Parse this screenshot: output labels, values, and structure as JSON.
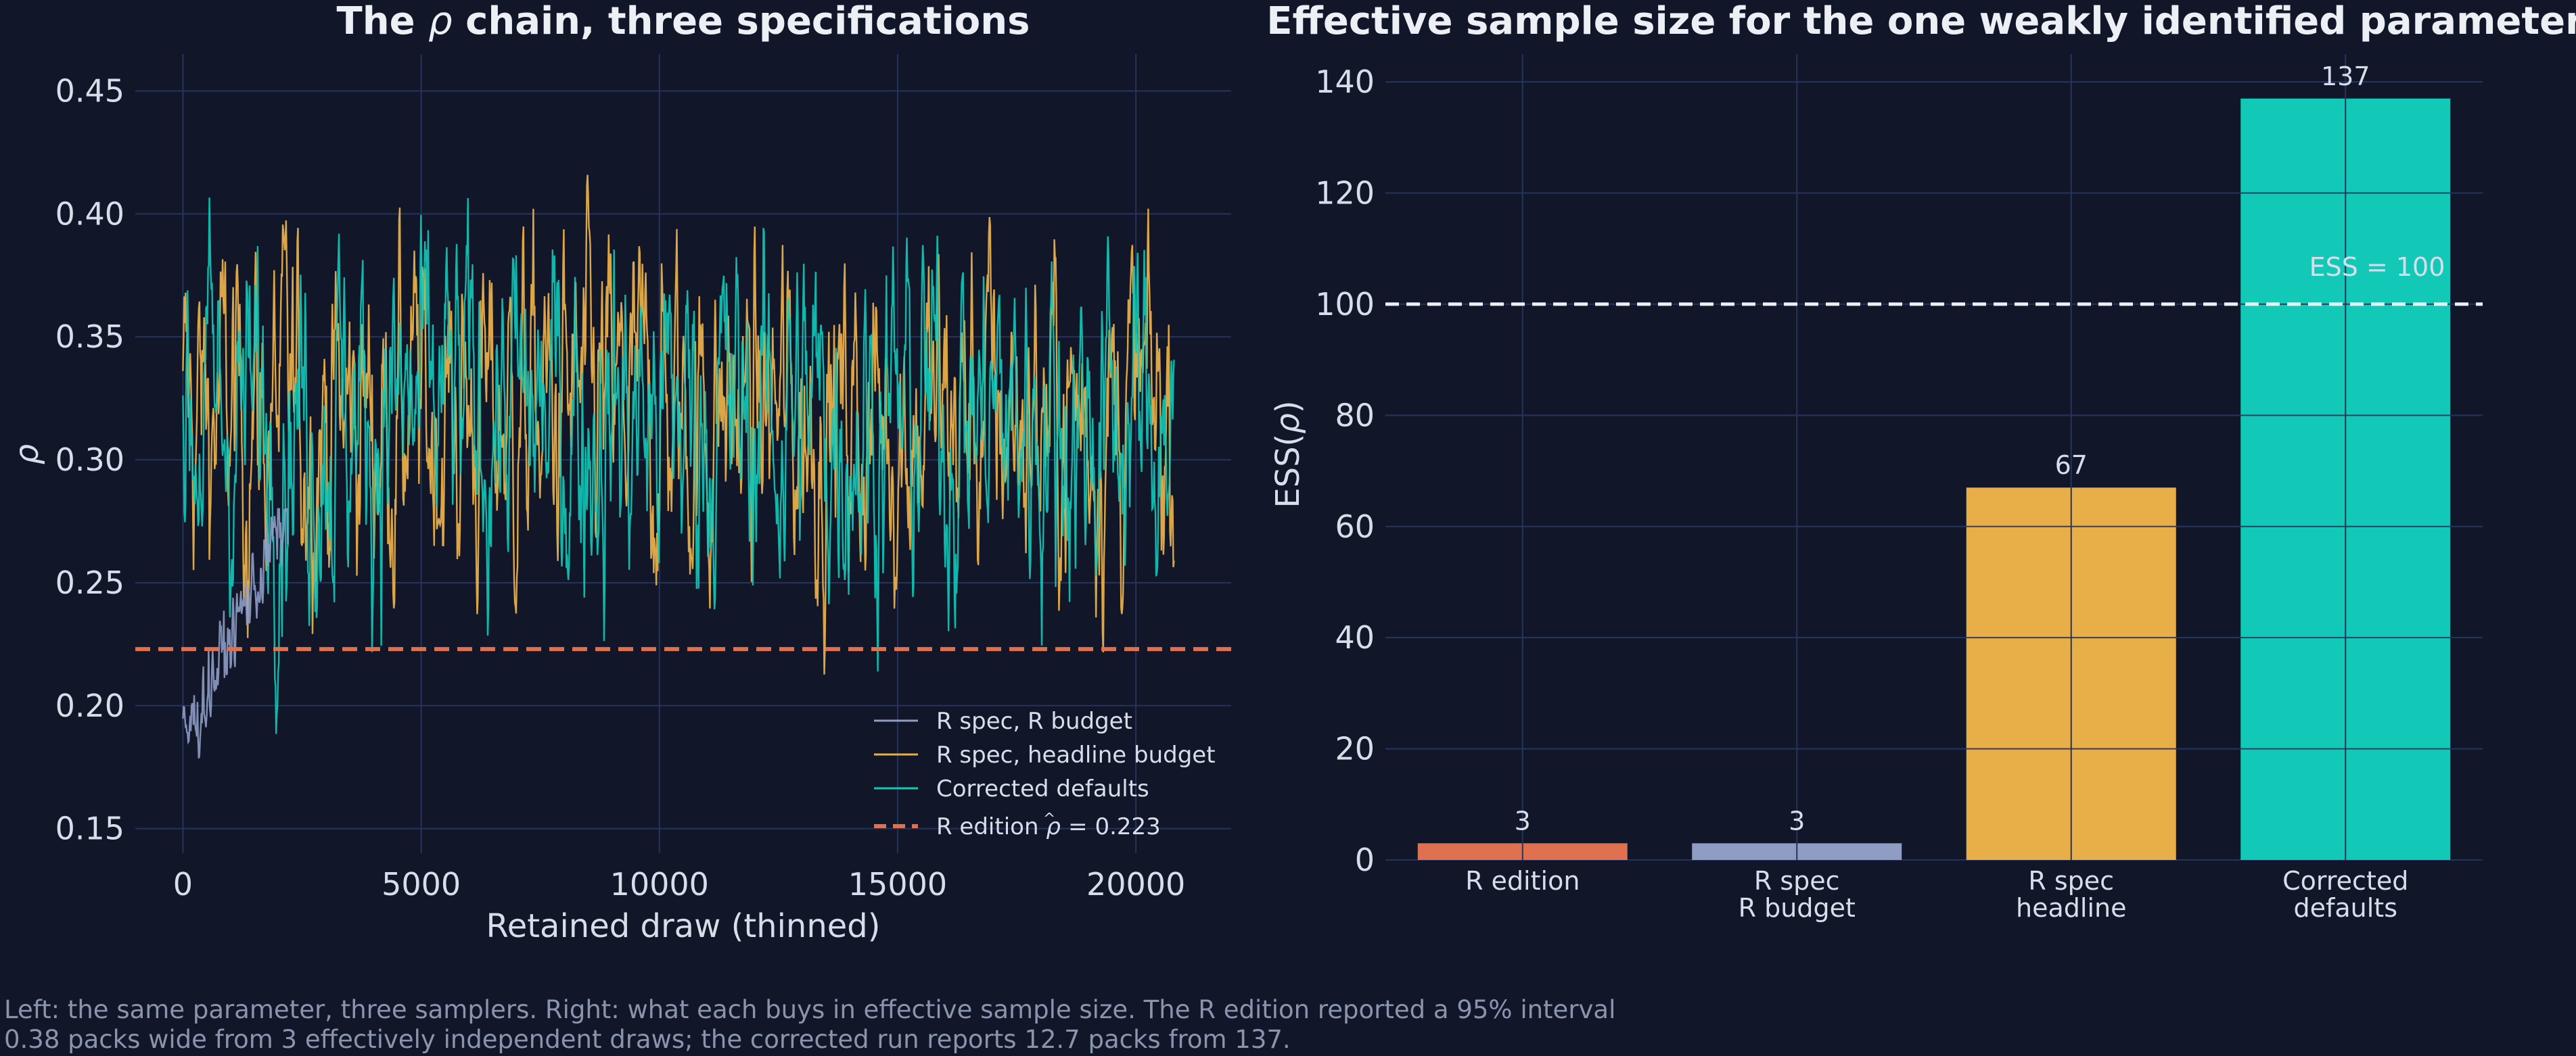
{
  "caption": {
    "line1": "Left: the same parameter, three samplers. Right: what each buys in effective sample size. The R edition reported a 95% interval",
    "line2": "0.38 packs wide from 3 effectively independent draws; the corrected run reports 12.7 packs from 137."
  },
  "colors": {
    "background": "#111729",
    "grid": "#26335A",
    "r_budget": "#8F9CC4",
    "headline": "#E8AE48",
    "corrected": "#12C9B8",
    "r_edition": "#E07150",
    "reference": "#ECEFF4"
  },
  "chart_data": [
    {
      "type": "line",
      "title_prefix": "The ",
      "title_symbol": "ρ",
      "title_suffix": " chain, three specifications",
      "xlabel": "Retained draw (thinned)",
      "ylabel": "ρ",
      "xlim": [
        -1000,
        22000
      ],
      "ylim": [
        0.14,
        0.465
      ],
      "xticks": [
        0,
        5000,
        10000,
        15000,
        20000
      ],
      "xtick_labels": [
        "0",
        "5000",
        "10000",
        "15000",
        "20000"
      ],
      "yticks": [
        0.15,
        0.2,
        0.25,
        0.3,
        0.35,
        0.4,
        0.45
      ],
      "ytick_labels": [
        "0.15",
        "0.20",
        "0.25",
        "0.30",
        "0.35",
        "0.40",
        "0.45"
      ],
      "grid": true,
      "legend_position": "lower-right",
      "series": [
        {
          "name": "R spec, R budget",
          "style": "trace",
          "x_range": [
            0,
            2200
          ],
          "start_value": 0.185,
          "end_value": 0.28,
          "range": [
            0.17,
            0.28
          ],
          "jitter": 0.01,
          "color": "#8F9CC4"
        },
        {
          "name": "R spec, headline budget",
          "style": "trace",
          "x_range": [
            0,
            20800
          ],
          "mean": 0.318,
          "range": [
            0.17,
            0.455
          ],
          "color": "#E8AE48"
        },
        {
          "name": "Corrected defaults",
          "style": "trace",
          "x_range": [
            0,
            20800
          ],
          "mean": 0.318,
          "range": [
            0.155,
            0.455
          ],
          "color": "#12C9B8"
        },
        {
          "name": "R edition",
          "legend_suffix": " = 0.223",
          "style": "reference-line",
          "value": 0.223,
          "color": "#E07150"
        }
      ]
    },
    {
      "type": "bar",
      "title": "Effective sample size for the one weakly identified parameter",
      "ylabel_prefix": "ESS(",
      "ylabel_symbol": "ρ",
      "ylabel_suffix": ")",
      "ylim": [
        0,
        145
      ],
      "yticks": [
        0,
        20,
        40,
        60,
        80,
        100,
        120,
        140
      ],
      "categories": [
        [
          "R edition"
        ],
        [
          "R spec",
          "R budget"
        ],
        [
          "R spec",
          "headline"
        ],
        [
          "Corrected",
          "defaults"
        ]
      ],
      "values": [
        3,
        3,
        67,
        137
      ],
      "value_labels": [
        "3",
        "3",
        "67",
        "137"
      ],
      "bar_colors": [
        "#E07150",
        "#8F9CC4",
        "#E8AE48",
        "#12C9B8"
      ],
      "reference_line": {
        "value": 100,
        "label": "ESS = 100"
      },
      "grid": true
    }
  ]
}
